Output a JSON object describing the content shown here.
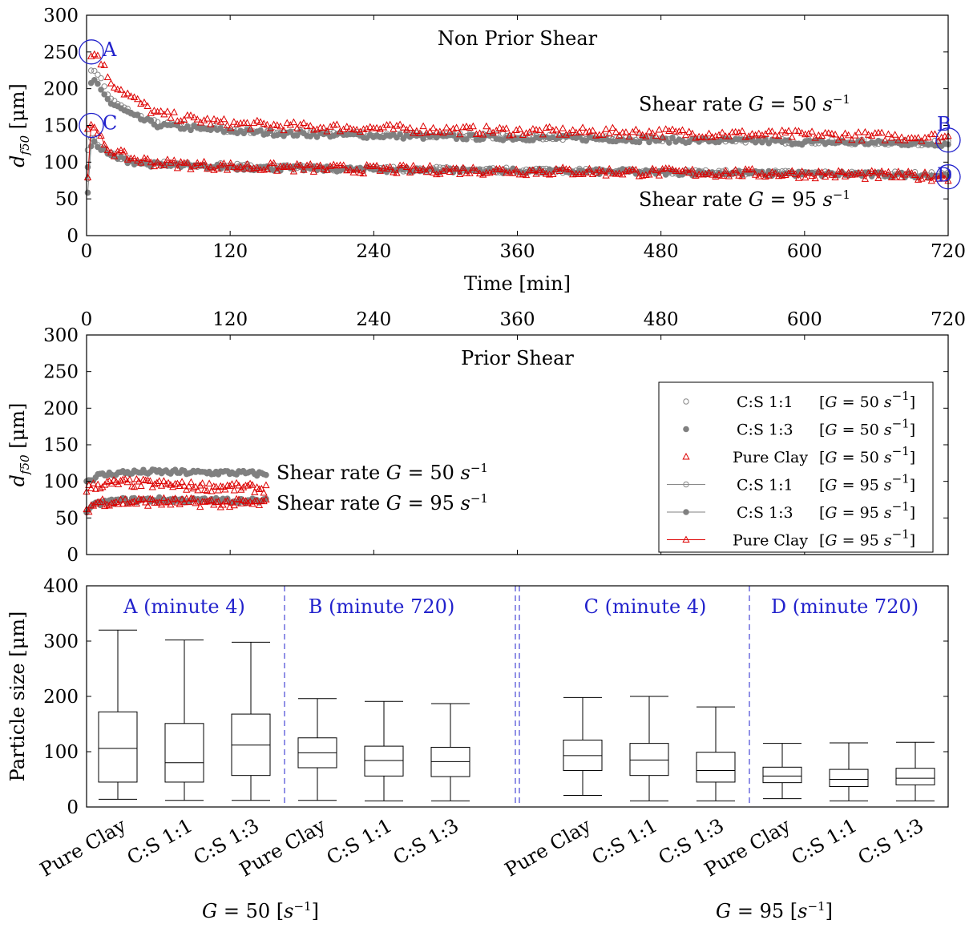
{
  "chart_data": [
    {
      "type": "scatter",
      "panel": "top",
      "title": "Non Prior Shear",
      "xlabel": "Time [min]",
      "ylabel_main": "d",
      "ylabel_sub": "f50",
      "ylabel_unit": " [μm]",
      "xlim": [
        0,
        720
      ],
      "ylim": [
        0,
        300
      ],
      "xticks": [
        "0",
        "120",
        "240",
        "360",
        "480",
        "600",
        "720"
      ],
      "yticks": [
        "0",
        "50",
        "100",
        "150",
        "200",
        "250",
        "300"
      ],
      "annotations": [
        {
          "text": "Shear rate G = 50 s⁻¹"
        },
        {
          "text": "Shear rate G = 95 s⁻¹"
        }
      ],
      "markers": [
        {
          "label": "A",
          "x": 4,
          "y": 250
        },
        {
          "label": "C",
          "x": 4,
          "y": 150
        },
        {
          "label": "B",
          "x": 720,
          "y": 130
        },
        {
          "label": "D",
          "x": 720,
          "y": 80
        }
      ],
      "series": [
        {
          "name": "C:S 1:1 [G = 50 s⁻¹]",
          "color": "#888888",
          "marker": "open-circle",
          "x": [
            1,
            4,
            10,
            20,
            40,
            60,
            90,
            120,
            180,
            240,
            300,
            360,
            420,
            480,
            540,
            600,
            660,
            720
          ],
          "y": [
            120,
            230,
            220,
            185,
            165,
            152,
            148,
            144,
            140,
            138,
            137,
            135,
            133,
            131,
            130,
            128,
            127,
            126
          ]
        },
        {
          "name": "C:S 1:3 [G = 50 s⁻¹]",
          "color": "#808080",
          "marker": "filled-circle",
          "x": [
            1,
            4,
            10,
            20,
            40,
            60,
            90,
            120,
            180,
            240,
            300,
            360,
            420,
            480,
            540,
            600,
            660,
            720
          ],
          "y": [
            90,
            215,
            205,
            180,
            162,
            150,
            146,
            142,
            138,
            136,
            134,
            133,
            132,
            130,
            129,
            127,
            126,
            125
          ]
        },
        {
          "name": "Pure Clay [G = 50 s⁻¹]",
          "color": "#dd0000",
          "marker": "open-triangle",
          "x": [
            1,
            4,
            10,
            20,
            40,
            60,
            90,
            120,
            180,
            240,
            300,
            360,
            420,
            480,
            540,
            600,
            660,
            720
          ],
          "y": [
            150,
            250,
            245,
            210,
            185,
            165,
            158,
            152,
            148,
            146,
            144,
            142,
            141,
            140,
            138,
            137,
            135,
            134
          ]
        },
        {
          "name": "C:S 1:1 [G = 95 s⁻¹]",
          "color": "#888888",
          "marker": "open-circle-line",
          "x": [
            1,
            4,
            10,
            20,
            40,
            60,
            90,
            120,
            180,
            240,
            300,
            360,
            420,
            480,
            540,
            600,
            660,
            720
          ],
          "y": [
            80,
            140,
            125,
            110,
            102,
            98,
            96,
            95,
            93,
            91,
            90,
            89,
            88,
            87,
            86,
            85,
            84,
            83
          ]
        },
        {
          "name": "C:S 1:3 [G = 95 s⁻¹]",
          "color": "#808080",
          "marker": "filled-circle-line",
          "x": [
            1,
            4,
            10,
            20,
            40,
            60,
            90,
            120,
            180,
            240,
            300,
            360,
            420,
            480,
            540,
            600,
            660,
            720
          ],
          "y": [
            60,
            130,
            120,
            108,
            100,
            96,
            94,
            93,
            91,
            90,
            89,
            88,
            87,
            86,
            85,
            84,
            83,
            82
          ]
        },
        {
          "name": "Pure Clay [G = 95 s⁻¹]",
          "color": "#dd0000",
          "marker": "open-triangle-line",
          "x": [
            1,
            4,
            10,
            20,
            40,
            60,
            90,
            120,
            180,
            240,
            300,
            360,
            420,
            480,
            540,
            600,
            660,
            720
          ],
          "y": [
            85,
            150,
            135,
            115,
            104,
            99,
            96,
            94,
            92,
            90,
            89,
            88,
            87,
            86,
            85,
            84,
            82,
            80
          ]
        }
      ]
    },
    {
      "type": "scatter",
      "panel": "middle",
      "title": "Prior Shear",
      "ylabel_main": "d",
      "ylabel_sub": "f50",
      "ylabel_unit": " [μm]",
      "xlim": [
        0,
        720
      ],
      "ylim": [
        0,
        300
      ],
      "xticks": [
        "0",
        "120",
        "240",
        "360",
        "480",
        "600",
        "720"
      ],
      "yticks": [
        "0",
        "50",
        "100",
        "150",
        "200",
        "250",
        "300"
      ],
      "annotations": [
        {
          "text": "Shear rate G = 50 s⁻¹"
        },
        {
          "text": "Shear rate G = 95 s⁻¹"
        }
      ],
      "legend": {
        "placement": "right",
        "entries": [
          {
            "name": "C:S 1:1",
            "cond": "[G = 50 s⁻¹]",
            "color": "#888888",
            "marker": "open-circle"
          },
          {
            "name": "C:S 1:3",
            "cond": "[G = 50 s⁻¹]",
            "color": "#808080",
            "marker": "filled-circle"
          },
          {
            "name": "Pure Clay",
            "cond": "[G = 50 s⁻¹]",
            "color": "#dd0000",
            "marker": "open-triangle"
          },
          {
            "name": "C:S 1:1",
            "cond": "[G = 95 s⁻¹]",
            "color": "#888888",
            "marker": "open-circle-line"
          },
          {
            "name": "C:S 1:3",
            "cond": "[G = 95 s⁻¹]",
            "color": "#808080",
            "marker": "filled-circle-line"
          },
          {
            "name": "Pure Clay",
            "cond": "[G = 95 s⁻¹]",
            "color": "#dd0000",
            "marker": "open-triangle-line"
          }
        ]
      },
      "series": [
        {
          "name": "C:S 1:3 [G = 50 s⁻¹]",
          "color": "#808080",
          "marker": "filled-circle",
          "x": [
            0,
            10,
            30,
            60,
            90,
            120,
            150
          ],
          "y": [
            100,
            108,
            112,
            113,
            112,
            112,
            110
          ]
        },
        {
          "name": "Pure Clay [G = 50 s⁻¹]",
          "color": "#dd0000",
          "marker": "open-triangle",
          "x": [
            0,
            10,
            30,
            60,
            90,
            120,
            150
          ],
          "y": [
            90,
            95,
            98,
            96,
            93,
            92,
            90
          ]
        },
        {
          "name": "C:S 1:3 [G = 95 s⁻¹]",
          "color": "#808080",
          "marker": "filled-circle",
          "x": [
            0,
            10,
            30,
            60,
            90,
            120,
            150
          ],
          "y": [
            60,
            70,
            74,
            75,
            74,
            74,
            73
          ]
        },
        {
          "name": "Pure Clay [G = 95 s⁻¹]",
          "color": "#dd0000",
          "marker": "open-triangle",
          "x": [
            0,
            10,
            30,
            60,
            90,
            120,
            150
          ],
          "y": [
            62,
            72,
            72,
            72,
            71,
            70,
            70
          ]
        }
      ]
    },
    {
      "type": "box",
      "panel": "bottom",
      "ylabel": "Particle size [μm]",
      "ylim": [
        0,
        400
      ],
      "yticks": [
        "0",
        "100",
        "200",
        "300",
        "400"
      ],
      "groups": [
        {
          "label": "A (minute 4)"
        },
        {
          "label": "B (minute 720)"
        },
        {
          "label": "C (minute 4)"
        },
        {
          "label": "D (minute 720)"
        }
      ],
      "group_labels": [
        "G = 50 [s⁻¹]",
        "G = 95 [s⁻¹]"
      ],
      "categories": [
        "Pure Clay",
        "C:S 1:1",
        "C:S 1:3",
        "Pure Clay",
        "C:S 1:1",
        "C:S 1:3",
        "Pure Clay",
        "C:S 1:1",
        "C:S 1:3",
        "Pure Clay",
        "C:S 1:1",
        "C:S 1:3"
      ],
      "boxes": [
        {
          "min": 14,
          "q1": 45,
          "median": 106,
          "q3": 172,
          "max": 320
        },
        {
          "min": 12,
          "q1": 45,
          "median": 80,
          "q3": 151,
          "max": 302
        },
        {
          "min": 12,
          "q1": 57,
          "median": 112,
          "q3": 168,
          "max": 298
        },
        {
          "min": 12,
          "q1": 71,
          "median": 98,
          "q3": 125,
          "max": 196
        },
        {
          "min": 11,
          "q1": 56,
          "median": 84,
          "q3": 110,
          "max": 191
        },
        {
          "min": 11,
          "q1": 55,
          "median": 82,
          "q3": 108,
          "max": 187
        },
        {
          "min": 21,
          "q1": 66,
          "median": 93,
          "q3": 121,
          "max": 198
        },
        {
          "min": 11,
          "q1": 57,
          "median": 85,
          "q3": 115,
          "max": 200
        },
        {
          "min": 11,
          "q1": 45,
          "median": 66,
          "q3": 99,
          "max": 181
        },
        {
          "min": 15,
          "q1": 44,
          "median": 56,
          "q3": 72,
          "max": 115
        },
        {
          "min": 11,
          "q1": 37,
          "median": 50,
          "q3": 68,
          "max": 116
        },
        {
          "min": 11,
          "q1": 40,
          "median": 52,
          "q3": 70,
          "max": 117
        }
      ]
    }
  ]
}
